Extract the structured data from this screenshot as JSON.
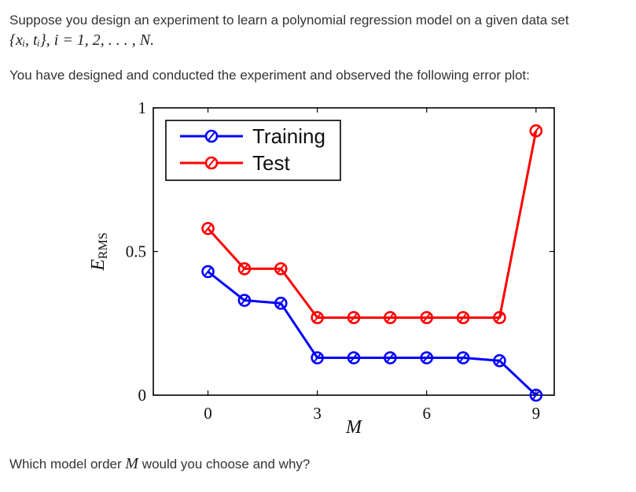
{
  "question": {
    "line1": "Suppose you design an experiment to learn a polynomial regression model on a given data set",
    "line2": "{xᵢ, tᵢ}, i = 1, 2, . . . , N.",
    "line3": "You have designed and conducted the experiment and observed the following error plot:",
    "line4_before": "Which model order ",
    "line4_math": "M",
    "line4_after": " would you choose and why?"
  },
  "chart_data": {
    "type": "line",
    "xlabel": "M",
    "ylabel": "E",
    "ylabel_sub": "RMS",
    "xlim": [
      -1.5,
      9.5
    ],
    "ylim": [
      0,
      1
    ],
    "xticks": [
      0,
      3,
      6,
      9
    ],
    "yticks": [
      0,
      0.5,
      1
    ],
    "ytick_labels": [
      "0",
      "0.5",
      "1"
    ],
    "x": [
      0,
      1,
      2,
      3,
      4,
      5,
      6,
      7,
      8,
      9
    ],
    "series": [
      {
        "name": "Training",
        "color": "#0000ff",
        "values": [
          0.43,
          0.33,
          0.32,
          0.13,
          0.13,
          0.13,
          0.13,
          0.13,
          0.12,
          0.0
        ]
      },
      {
        "name": "Test",
        "color": "#ff0000",
        "values": [
          0.58,
          0.44,
          0.44,
          0.27,
          0.27,
          0.27,
          0.27,
          0.27,
          0.27,
          0.92
        ]
      }
    ],
    "legend": "top-left",
    "grid": false
  }
}
